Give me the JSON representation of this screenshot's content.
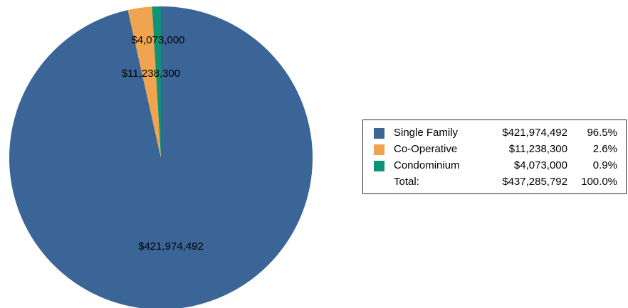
{
  "chart_data": {
    "type": "pie",
    "title": "",
    "slices": [
      {
        "name": "Single Family",
        "value": 421974492,
        "value_label": "$421,974,492",
        "percent_label": "96.5%",
        "color": "#3b6596"
      },
      {
        "name": "Co-Operative",
        "value": 11238300,
        "value_label": "$11,238,300",
        "percent_label": "2.6%",
        "color": "#f0a450"
      },
      {
        "name": "Condominium",
        "value": 4073000,
        "value_label": "$4,073,000",
        "percent_label": "0.9%",
        "color": "#0f9275"
      }
    ],
    "legend": {
      "placement": "right",
      "total_label": "Total:",
      "total_value_label": "$437,285,792",
      "total_percent_label": "100.0%"
    }
  }
}
